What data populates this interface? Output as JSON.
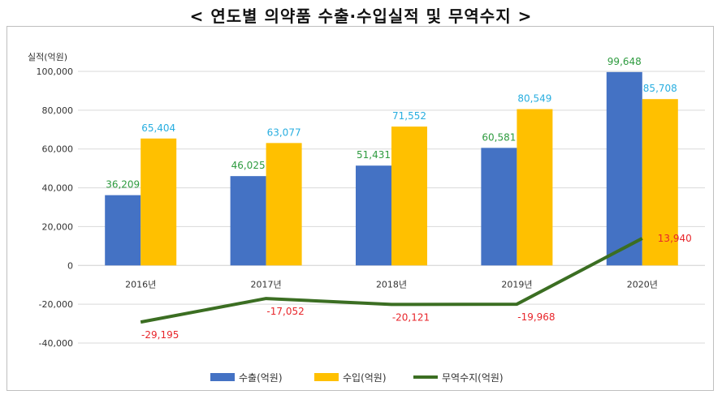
{
  "chart_data": {
    "type": "bar",
    "title": "< 연도별 의약품 수출·수입실적 및 무역수지 >",
    "ylabel": "실적(억원)",
    "categories": [
      "2016년",
      "2017년",
      "2018년",
      "2019년",
      "2020년"
    ],
    "ylim": [
      -40000,
      100000
    ],
    "yticks": [
      "100,000",
      "80,000",
      "60,000",
      "40,000",
      "20,000",
      "0",
      "-20,000",
      "-40,000"
    ],
    "grid": true,
    "legend_position": "bottom",
    "series": [
      {
        "name": "수출(억원)",
        "type": "bar",
        "color": "#4472C4",
        "label_color": "#2E9B3F",
        "values": [
          36209,
          46025,
          51431,
          60581,
          99648
        ],
        "labels": [
          "36,209",
          "46,025",
          "51,431",
          "60,581",
          "99,648"
        ]
      },
      {
        "name": "수입(억원)",
        "type": "bar",
        "color": "#FFC000",
        "label_color": "#28AEE0",
        "values": [
          65404,
          63077,
          71552,
          80549,
          85708
        ],
        "labels": [
          "65,404",
          "63,077",
          "71,552",
          "80,549",
          "85,708"
        ]
      },
      {
        "name": "무역수지(억원)",
        "type": "line",
        "color": "#3B6E22",
        "label_color": "#E8262B",
        "values": [
          -29195,
          -17052,
          -20121,
          -19968,
          13940
        ],
        "labels": [
          "-29,195",
          "-17,052",
          "-20,121",
          "-19,968",
          "13,940"
        ]
      }
    ]
  }
}
